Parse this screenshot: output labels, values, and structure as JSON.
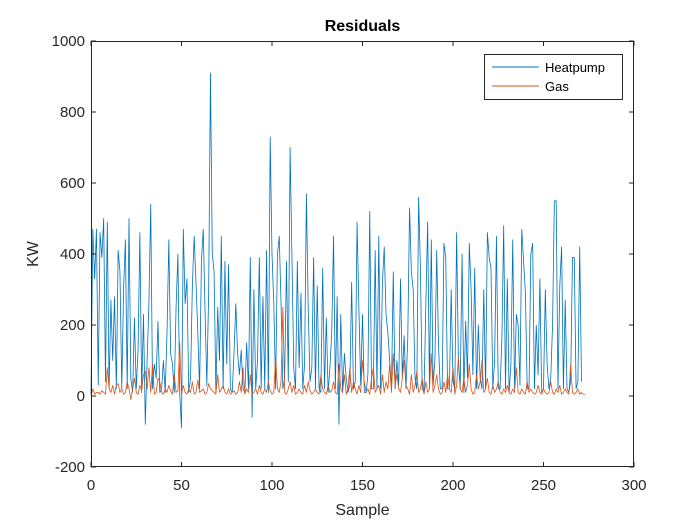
{
  "chart_data": {
    "type": "line",
    "title": "Residuals",
    "xlabel": "Sample",
    "ylabel": "KW",
    "xlim": [
      0,
      300
    ],
    "ylim": [
      -200,
      1000
    ],
    "xticks": [
      0,
      50,
      100,
      150,
      200,
      250,
      300
    ],
    "yticks": [
      -200,
      0,
      200,
      400,
      600,
      800,
      1000
    ],
    "grid": false,
    "legend_position": "top-right",
    "series": [
      {
        "name": "Heatpump",
        "color": "#0072BD",
        "values": [
          5,
          470,
          330,
          470,
          30,
          460,
          390,
          500,
          40,
          490,
          20,
          270,
          100,
          280,
          20,
          410,
          350,
          20,
          300,
          440,
          20,
          500,
          50,
          10,
          220,
          20,
          130,
          460,
          10,
          230,
          -80,
          100,
          260,
          540,
          20,
          90,
          50,
          210,
          10,
          20,
          100,
          10,
          180,
          440,
          120,
          90,
          10,
          250,
          400,
          10,
          -90,
          470,
          260,
          330,
          10,
          50,
          310,
          450,
          320,
          180,
          20,
          380,
          470,
          240,
          30,
          290,
          910,
          400,
          350,
          10,
          250,
          100,
          450,
          20,
          380,
          90,
          370,
          20,
          10,
          120,
          260,
          120,
          60,
          130,
          20,
          10,
          150,
          20,
          390,
          -60,
          300,
          20,
          100,
          390,
          20,
          280,
          20,
          410,
          10,
          730,
          400,
          260,
          20,
          400,
          450,
          260,
          20,
          50,
          380,
          40,
          700,
          400,
          80,
          20,
          380,
          80,
          290,
          20,
          90,
          570,
          250,
          40,
          80,
          390,
          20,
          310,
          20,
          10,
          360,
          20,
          220,
          10,
          80,
          180,
          450,
          20,
          280,
          -80,
          230,
          10,
          120,
          50,
          10,
          30,
          320,
          20,
          40,
          490,
          250,
          30,
          230,
          10,
          10,
          60,
          520,
          20,
          20,
          410,
          20,
          450,
          20,
          320,
          420,
          230,
          180,
          100,
          20,
          350,
          20,
          100,
          30,
          330,
          50,
          170,
          20,
          160,
          530,
          350,
          300,
          50,
          20,
          560,
          360,
          20,
          10,
          260,
          490,
          20,
          440,
          30,
          100,
          410,
          140,
          20,
          20,
          430,
          390,
          20,
          20,
          300,
          40,
          20,
          460,
          90,
          20,
          400,
          10,
          210,
          50,
          430,
          300,
          60,
          360,
          20,
          200,
          50,
          20,
          300,
          20,
          460,
          390,
          360,
          20,
          100,
          450,
          20,
          20,
          160,
          480,
          20,
          330,
          10,
          90,
          440,
          20,
          230,
          200,
          30,
          470,
          380,
          290,
          20,
          20,
          400,
          430,
          20,
          200,
          60,
          330,
          10,
          20,
          300,
          90,
          20,
          50,
          200,
          550,
          550,
          20,
          310,
          420,
          20,
          270,
          20,
          10,
          40,
          390,
          390,
          20,
          40,
          420,
          40
        ]
      },
      {
        "name": "Gas",
        "color": "#D95319",
        "values": [
          0,
          20,
          5,
          10,
          10,
          5,
          15,
          10,
          5,
          80,
          20,
          10,
          30,
          5,
          30,
          35,
          10,
          20,
          5,
          10,
          40,
          20,
          -10,
          20,
          50,
          10,
          5,
          30,
          15,
          60,
          70,
          20,
          80,
          10,
          90,
          5,
          10,
          50,
          40,
          10,
          5,
          20,
          10,
          30,
          15,
          5,
          60,
          10,
          15,
          150,
          5,
          30,
          10,
          5,
          20,
          10,
          40,
          5,
          10,
          45,
          10,
          15,
          20,
          5,
          10,
          35,
          20,
          15,
          10,
          5,
          60,
          10,
          20,
          30,
          10,
          5,
          20,
          5,
          10,
          15,
          5,
          10,
          40,
          10,
          80,
          5,
          20,
          10,
          60,
          5,
          10,
          20,
          5,
          30,
          10,
          5,
          20,
          10,
          40,
          15,
          5,
          10,
          110,
          20,
          10,
          40,
          250,
          10,
          5,
          20,
          40,
          10,
          30,
          5,
          10,
          20,
          10,
          5,
          30,
          10,
          40,
          15,
          5,
          10,
          20,
          10,
          5,
          60,
          20,
          10,
          5,
          30,
          10,
          15,
          40,
          10,
          5,
          90,
          20,
          10,
          60,
          5,
          20,
          80,
          10,
          40,
          20,
          5,
          30,
          10,
          100,
          40,
          10,
          20,
          5,
          50,
          80,
          10,
          20,
          30,
          5,
          60,
          10,
          40,
          20,
          90,
          10,
          120,
          30,
          60,
          20,
          10,
          50,
          100,
          30,
          20,
          5,
          60,
          10,
          30,
          70,
          10,
          20,
          50,
          5,
          40,
          10,
          20,
          120,
          10,
          30,
          60,
          20,
          5,
          10,
          40,
          10,
          60,
          20,
          10,
          80,
          5,
          30,
          110,
          20,
          10,
          50,
          10,
          30,
          90,
          20,
          5,
          10,
          60,
          20,
          40,
          100,
          10,
          20,
          50,
          10,
          5,
          30,
          10,
          20,
          40,
          10,
          5,
          20,
          10,
          30,
          10,
          5,
          20,
          10,
          80,
          10,
          5,
          20,
          10,
          5,
          40,
          10,
          20,
          10,
          5,
          10,
          30,
          10,
          5,
          20,
          10,
          5,
          10,
          40,
          10,
          5,
          20,
          10,
          30,
          5,
          10,
          20,
          10,
          5,
          90,
          10,
          5,
          10,
          20,
          5,
          10,
          5,
          5
        ]
      }
    ]
  }
}
